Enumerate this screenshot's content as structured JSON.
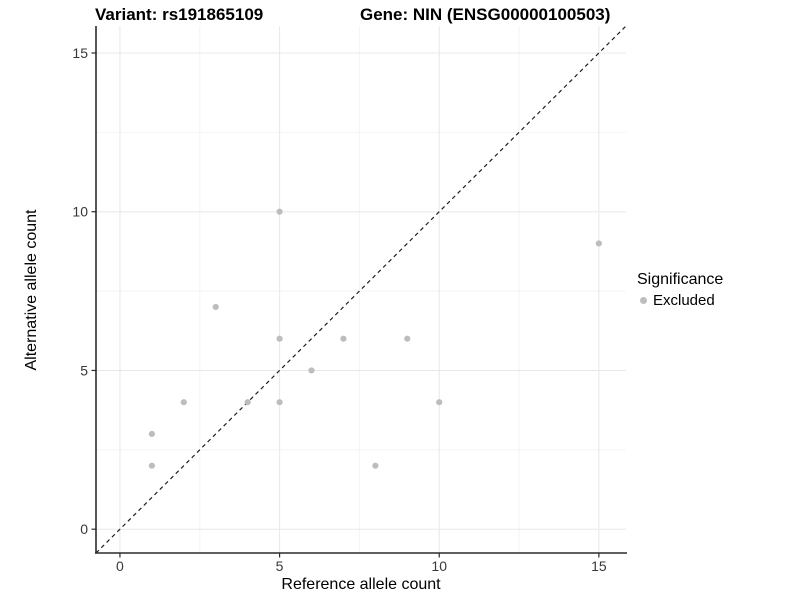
{
  "titles": {
    "variant": "Variant: rs191865109",
    "gene": "Gene: NIN (ENSG00000100503)"
  },
  "legend": {
    "title": "Significance",
    "items": [
      {
        "label": "Excluded",
        "color": "#bdbdbd"
      }
    ]
  },
  "chart_data": {
    "type": "scatter",
    "xlabel": "Reference allele count",
    "ylabel": "Alternative allele count",
    "xlim": [
      -0.75,
      15.85
    ],
    "ylim": [
      -0.75,
      15.85
    ],
    "x_ticks": [
      0,
      5,
      10,
      15
    ],
    "y_ticks": [
      0,
      5,
      10,
      15
    ],
    "minor_ticks": [
      2.5,
      7.5,
      12.5
    ],
    "grid": true,
    "legend_position": "right",
    "reference_line": {
      "type": "identity",
      "style": "dashed",
      "color": "#1f1f1f"
    },
    "series": [
      {
        "name": "Excluded",
        "color": "#bdbdbd",
        "points": [
          [
            1,
            2
          ],
          [
            1,
            3
          ],
          [
            2,
            4
          ],
          [
            3,
            7
          ],
          [
            4,
            4
          ],
          [
            5,
            4
          ],
          [
            5,
            6
          ],
          [
            5,
            10
          ],
          [
            6,
            5
          ],
          [
            7,
            6
          ],
          [
            8,
            2
          ],
          [
            9,
            6
          ],
          [
            10,
            4
          ],
          [
            15,
            9
          ]
        ]
      }
    ],
    "style": {
      "grid_major_color": "#e8e8e8",
      "grid_minor_color": "#f4f4f4",
      "axis_line_color": "#2b2b2b",
      "tick_label_color": "#383838",
      "point_radius": 3.1
    }
  }
}
